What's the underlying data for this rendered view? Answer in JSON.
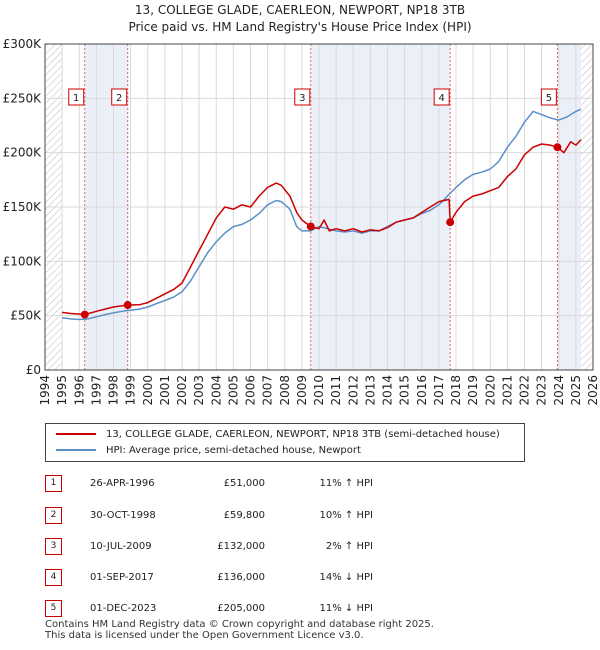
{
  "title_line1": "13, COLLEGE GLADE, CAERLEON, NEWPORT, NP18 3TB",
  "title_line2": "Price paid vs. HM Land Registry's House Price Index (HPI)",
  "chart_data": {
    "type": "line",
    "xlim": [
      1994,
      2026
    ],
    "ylim": [
      0,
      300000
    ],
    "y_ticks": [
      0,
      50000,
      100000,
      150000,
      200000,
      250000,
      300000
    ],
    "y_tick_labels": [
      "£0",
      "£50K",
      "£100K",
      "£150K",
      "£200K",
      "£250K",
      "£300K"
    ],
    "x_ticks": [
      1994,
      1995,
      1996,
      1997,
      1998,
      1999,
      2000,
      2001,
      2002,
      2003,
      2004,
      2005,
      2006,
      2007,
      2008,
      2009,
      2010,
      2011,
      2012,
      2013,
      2014,
      2015,
      2016,
      2017,
      2018,
      2019,
      2020,
      2021,
      2022,
      2023,
      2024,
      2025,
      2026
    ],
    "data_range": [
      1995.0,
      2025.3
    ],
    "hatched_regions": [
      [
        1994,
        1995.0
      ],
      [
        2025.3,
        2026
      ]
    ],
    "series": [
      {
        "name": "13, COLLEGE GLADE, CAERLEON, NEWPORT, NP18 3TB (semi-detached house)",
        "color": "#cc0000",
        "x": [
          1995.0,
          1995.5,
          1996.0,
          1996.32,
          1997.0,
          1997.5,
          1998.0,
          1998.83,
          1999.5,
          2000.0,
          2000.5,
          2001.0,
          2001.5,
          2002.0,
          2002.5,
          2003.0,
          2003.5,
          2004.0,
          2004.5,
          2005.0,
          2005.5,
          2006.0,
          2006.5,
          2007.0,
          2007.5,
          2007.8,
          2008.3,
          2008.7,
          2009.0,
          2009.52,
          2010.0,
          2010.3,
          2010.6,
          2011.0,
          2011.5,
          2012.0,
          2012.5,
          2013.0,
          2013.5,
          2014.0,
          2014.5,
          2015.0,
          2015.5,
          2016.0,
          2016.5,
          2017.0,
          2017.6,
          2017.66,
          2018.0,
          2018.5,
          2019.0,
          2019.5,
          2020.0,
          2020.5,
          2021.0,
          2021.5,
          2022.0,
          2022.5,
          2023.0,
          2023.5,
          2023.92,
          2024.3,
          2024.7,
          2025.0,
          2025.3
        ],
        "y": [
          53000,
          52000,
          51500,
          51000,
          54000,
          56000,
          58000,
          59800,
          60000,
          62000,
          66000,
          70000,
          74000,
          80000,
          95000,
          110000,
          125000,
          140000,
          150000,
          148000,
          152000,
          150000,
          160000,
          168000,
          172000,
          170000,
          160000,
          145000,
          138000,
          132000,
          130000,
          138000,
          128000,
          130000,
          128000,
          130000,
          127000,
          129000,
          128000,
          131000,
          136000,
          138000,
          140000,
          145000,
          150000,
          155000,
          157000,
          136000,
          145000,
          155000,
          160000,
          162000,
          165000,
          168000,
          178000,
          185000,
          198000,
          205000,
          208000,
          207000,
          205000,
          200000,
          210000,
          207000,
          212000
        ]
      },
      {
        "name": "HPI: Average price, semi-detached house, Newport",
        "color": "#5b8fc9",
        "x": [
          1995.0,
          1995.5,
          1996.0,
          1996.5,
          1997.0,
          1997.5,
          1998.0,
          1998.5,
          1999.0,
          1999.5,
          2000.0,
          2000.5,
          2001.0,
          2001.5,
          2002.0,
          2002.5,
          2003.0,
          2003.5,
          2004.0,
          2004.5,
          2005.0,
          2005.5,
          2006.0,
          2006.5,
          2007.0,
          2007.5,
          2007.8,
          2008.3,
          2008.7,
          2009.0,
          2009.5,
          2010.0,
          2010.5,
          2011.0,
          2011.5,
          2012.0,
          2012.5,
          2013.0,
          2013.5,
          2014.0,
          2014.5,
          2015.0,
          2015.5,
          2016.0,
          2016.5,
          2017.0,
          2017.5,
          2018.0,
          2018.5,
          2019.0,
          2019.5,
          2020.0,
          2020.5,
          2021.0,
          2021.5,
          2022.0,
          2022.5,
          2023.0,
          2023.5,
          2024.0,
          2024.5,
          2025.0,
          2025.3
        ],
        "y": [
          48000,
          47000,
          46500,
          47000,
          49000,
          51000,
          52500,
          54000,
          55000,
          56000,
          58000,
          61000,
          64000,
          67000,
          72000,
          82000,
          95000,
          108000,
          118000,
          126000,
          132000,
          134000,
          138000,
          144000,
          152000,
          156000,
          155000,
          148000,
          132000,
          128000,
          128000,
          132000,
          130000,
          128000,
          127000,
          128000,
          126000,
          128000,
          128000,
          132000,
          136000,
          138000,
          140000,
          144000,
          147000,
          152000,
          160000,
          168000,
          175000,
          180000,
          182000,
          185000,
          192000,
          205000,
          215000,
          228000,
          238000,
          235000,
          232000,
          230000,
          233000,
          238000,
          240000
        ]
      }
    ],
    "events": [
      {
        "label": "1",
        "x": 1996.32,
        "y": 51000
      },
      {
        "label": "2",
        "x": 1998.83,
        "y": 59800
      },
      {
        "label": "3",
        "x": 2009.52,
        "y": 132000
      },
      {
        "label": "4",
        "x": 2017.66,
        "y": 136000
      },
      {
        "label": "5",
        "x": 2023.92,
        "y": 205000
      }
    ],
    "shaded_spans": [
      [
        1996.32,
        1998.83
      ],
      [
        2009.52,
        2017.66
      ],
      [
        2023.92,
        2025.3
      ]
    ]
  },
  "legend": [
    {
      "label": "13, COLLEGE GLADE, CAERLEON, NEWPORT, NP18 3TB (semi-detached house)",
      "color": "#cc0000"
    },
    {
      "label": "HPI: Average price, semi-detached house, Newport",
      "color": "#5b8fc9"
    }
  ],
  "transactions": [
    {
      "num": "1",
      "date": "26-APR-1996",
      "price": "£51,000",
      "hpi": "11% ↑ HPI"
    },
    {
      "num": "2",
      "date": "30-OCT-1998",
      "price": "£59,800",
      "hpi": "10% ↑ HPI"
    },
    {
      "num": "3",
      "date": "10-JUL-2009",
      "price": "£132,000",
      "hpi": "2% ↑ HPI"
    },
    {
      "num": "4",
      "date": "01-SEP-2017",
      "price": "£136,000",
      "hpi": "14% ↓ HPI"
    },
    {
      "num": "5",
      "date": "01-DEC-2023",
      "price": "£205,000",
      "hpi": "11% ↓ HPI"
    }
  ],
  "footer_line1": "Contains HM Land Registry data © Crown copyright and database right 2025.",
  "footer_line2": "This data is licensed under the Open Government Licence v3.0."
}
